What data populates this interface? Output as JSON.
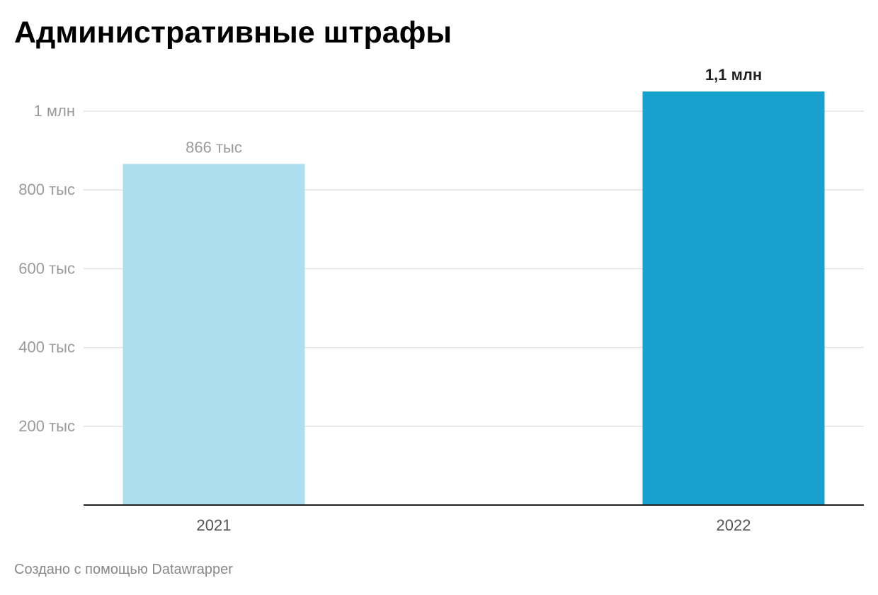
{
  "chart_data": {
    "type": "bar",
    "title": "Административные штрафы",
    "categories": [
      "2021",
      "2022"
    ],
    "values": [
      866000,
      1050000
    ],
    "value_labels": [
      "866 тыс",
      "1,1 млн"
    ],
    "y_ticks": [
      200000,
      400000,
      600000,
      800000,
      1000000
    ],
    "y_tick_labels": [
      "200 тыс",
      "400 тыс",
      "600 тыс",
      "800 тыс",
      "1 млн"
    ],
    "ylim": [
      0,
      1050000
    ],
    "grid": true,
    "bar_colors": [
      "#aedfee",
      "#19a1cd"
    ],
    "value_label_colors": [
      "#9a9a9a",
      "#222222"
    ],
    "xlabel": "",
    "ylabel": ""
  },
  "footer": {
    "credit": "Создано с помощью Datawrapper"
  }
}
